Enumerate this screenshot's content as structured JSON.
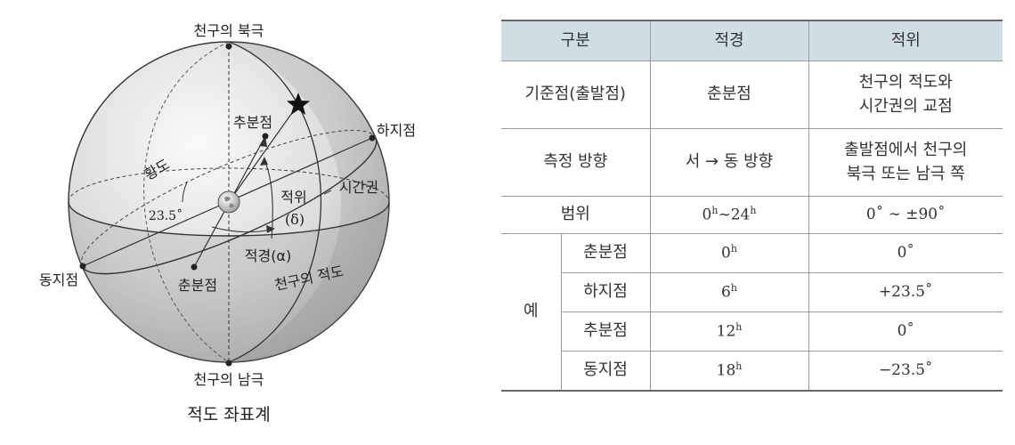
{
  "figure": {
    "caption": "적도 좌표계",
    "labels": {
      "north_pole": "천구의 북극",
      "south_pole": "천구의 남극",
      "autumnal_equinox": "추분점",
      "summer_solstice": "하지점",
      "winter_solstice": "동지점",
      "vernal_equinox": "춘분점",
      "ecliptic": "황도",
      "hour_circle": "시간권",
      "celestial_equator": "천구의 적도",
      "tilt": "23.5˚",
      "declination": "적위",
      "declination_symbol": "(δ)",
      "right_ascension": "적경(α)"
    }
  },
  "table": {
    "headers": [
      "구분",
      "적경",
      "적위"
    ],
    "rows": [
      {
        "label": "기준점(출발점)",
        "ra": "춘분점",
        "dec_lines": [
          "천구의 적도와",
          "시간권의 교점"
        ]
      },
      {
        "label": "측정 방향",
        "ra": "서 → 동 방향",
        "dec_lines": [
          "출발점에서 천구의",
          "북극 또는 남극 쪽"
        ]
      },
      {
        "label": "범위",
        "ra": {
          "a": "0",
          "a_sup": "h",
          "sep": "∼",
          "b": "24",
          "b_sup": "h"
        },
        "dec": "0˚ ∼ ±90˚"
      }
    ],
    "example_label": "예",
    "examples": [
      {
        "name": "춘분점",
        "ra": "0",
        "ra_sup": "h",
        "dec": "0˚"
      },
      {
        "name": "하지점",
        "ra": "6",
        "ra_sup": "h",
        "dec": "+23.5˚"
      },
      {
        "name": "추분점",
        "ra": "12",
        "ra_sup": "h",
        "dec": "0˚"
      },
      {
        "name": "동지점",
        "ra": "18",
        "ra_sup": "h",
        "dec": "−23.5˚"
      }
    ]
  }
}
